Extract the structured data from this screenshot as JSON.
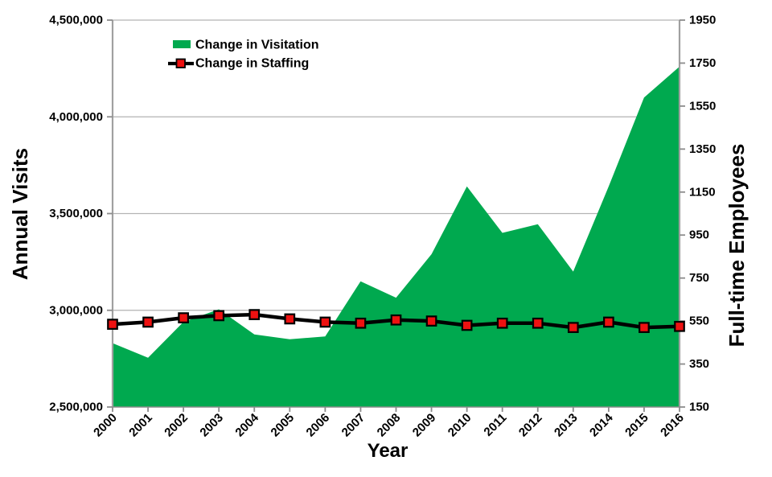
{
  "legend": {
    "visitation": "Change in Visitation",
    "staffing": "Change in Staffing"
  },
  "colors": {
    "visitation_green": "#00a94f",
    "staffing_line": "#000000",
    "staffing_marker_red": "#ee1111",
    "gridline_gray": "#b3b3b3",
    "axis_gray": "#a0a0a0",
    "tick_gray": "#8c8c8c",
    "text_black": "#000000"
  },
  "chart_data": {
    "type": "area",
    "title": "",
    "x": [
      2000,
      2001,
      2002,
      2003,
      2004,
      2005,
      2006,
      2007,
      2008,
      2009,
      2010,
      2011,
      2012,
      2013,
      2014,
      2015,
      2016
    ],
    "series": [
      {
        "name": "Change in Visitation",
        "type": "area",
        "axis": "left",
        "color": "#00a94f",
        "values": [
          2830000,
          2755000,
          2940000,
          3005000,
          2875000,
          2850000,
          2865000,
          3150000,
          3065000,
          3290000,
          3640000,
          3400000,
          3445000,
          3200000,
          3640000,
          4100000,
          4260000
        ]
      },
      {
        "name": "Change in Staffing",
        "type": "line",
        "axis": "right",
        "color": "#000000",
        "marker": "square",
        "marker_color": "#ee1111",
        "values": [
          535,
          545,
          565,
          575,
          580,
          560,
          545,
          540,
          555,
          550,
          530,
          540,
          540,
          520,
          545,
          520,
          525
        ]
      }
    ],
    "left_axis": {
      "title": "Annual Visits",
      "min": 2500000,
      "max": 4500000,
      "tick_values": [
        2500000,
        3000000,
        3500000,
        4000000,
        4500000
      ],
      "tick_labels": [
        "2,500,000",
        "3,000,000",
        "3,500,000",
        "4,000,000",
        "4,500,000"
      ]
    },
    "right_axis": {
      "title": "Full-time Employees",
      "min": 150,
      "max": 1950,
      "tick_values": [
        150,
        350,
        550,
        750,
        950,
        1150,
        1350,
        1550,
        1750,
        1950
      ],
      "tick_labels": [
        "150",
        "350",
        "550",
        "750",
        "950",
        "1150",
        "1350",
        "1550",
        "1750",
        "1950"
      ]
    },
    "x_axis": {
      "title": "Year",
      "tick_labels": [
        "2000",
        "2001",
        "2002",
        "2003",
        "2004",
        "2005",
        "2006",
        "2007",
        "2008",
        "2009",
        "2010",
        "2011",
        "2012",
        "2013",
        "2014",
        "2015",
        "2016"
      ]
    },
    "grid": "horizontal",
    "legend_position": "top-left-inside"
  }
}
